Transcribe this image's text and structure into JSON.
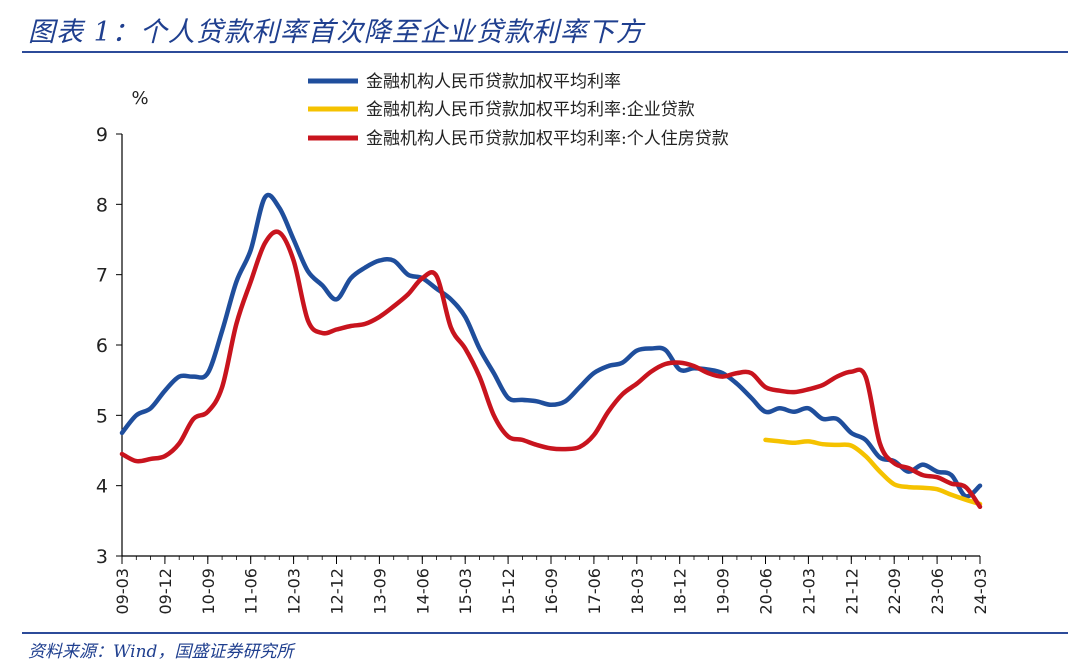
{
  "header": {
    "title": "图表 1：个人贷款利率首次降至企业贷款利率下方"
  },
  "footer": {
    "source": "资料来源：Wind，国盛证券研究所"
  },
  "colors": {
    "series1": "#1f4e9c",
    "series2": "#f5c200",
    "series3": "#c8141e",
    "rule": "#2c4b99",
    "title": "#1f3f8f"
  },
  "chart_data": {
    "type": "line",
    "title": "",
    "ylabel": "%",
    "xlabel": "",
    "ylim": [
      3,
      9
    ],
    "yticks": [
      "3",
      "4",
      "5",
      "6",
      "7",
      "8",
      "9"
    ],
    "xticks": [
      "09-03",
      "09-12",
      "10-09",
      "11-06",
      "12-03",
      "12-12",
      "13-09",
      "14-06",
      "15-03",
      "15-12",
      "16-09",
      "17-06",
      "18-03",
      "18-12",
      "19-09",
      "20-06",
      "21-03",
      "21-12",
      "22-09",
      "23-06",
      "24-03"
    ],
    "legend_position": "top",
    "grid": false,
    "series": [
      {
        "name": "金融机构人民币贷款加权平均利率",
        "x": [
          "09-03",
          "09-06",
          "09-09",
          "09-12",
          "10-03",
          "10-06",
          "10-09",
          "10-12",
          "11-03",
          "11-06",
          "11-09",
          "11-12",
          "12-03",
          "12-06",
          "12-09",
          "12-12",
          "13-03",
          "13-06",
          "13-09",
          "13-12",
          "14-03",
          "14-06",
          "14-09",
          "14-12",
          "15-03",
          "15-06",
          "15-09",
          "15-12",
          "16-03",
          "16-06",
          "16-09",
          "16-12",
          "17-03",
          "17-06",
          "17-09",
          "17-12",
          "18-03",
          "18-06",
          "18-09",
          "18-12",
          "19-03",
          "19-06",
          "19-09",
          "19-12",
          "20-03",
          "20-06",
          "20-09",
          "20-12",
          "21-03",
          "21-06",
          "21-09",
          "21-12",
          "22-03",
          "22-06",
          "22-09",
          "22-12",
          "23-03",
          "23-06",
          "23-09",
          "23-12",
          "24-03"
        ],
        "y": [
          4.75,
          5.0,
          5.1,
          5.35,
          5.55,
          5.55,
          5.6,
          6.2,
          6.9,
          7.35,
          8.1,
          7.95,
          7.5,
          7.05,
          6.85,
          6.65,
          6.95,
          7.1,
          7.2,
          7.2,
          7.0,
          6.95,
          6.8,
          6.65,
          6.4,
          5.95,
          5.6,
          5.25,
          5.22,
          5.2,
          5.15,
          5.2,
          5.4,
          5.6,
          5.7,
          5.75,
          5.92,
          5.95,
          5.93,
          5.65,
          5.67,
          5.65,
          5.6,
          5.45,
          5.25,
          5.05,
          5.1,
          5.05,
          5.1,
          4.95,
          4.95,
          4.75,
          4.65,
          4.4,
          4.35,
          4.2,
          4.3,
          4.2,
          4.15,
          3.85,
          4.0
        ]
      },
      {
        "name": "金融机构人民币贷款加权平均利率:企业贷款",
        "x": [
          "20-06",
          "20-09",
          "20-12",
          "21-03",
          "21-06",
          "21-09",
          "21-12",
          "22-03",
          "22-06",
          "22-09",
          "22-12",
          "23-03",
          "23-06",
          "23-09",
          "23-12",
          "24-03"
        ],
        "y": [
          4.65,
          4.63,
          4.61,
          4.63,
          4.59,
          4.58,
          4.57,
          4.42,
          4.2,
          4.02,
          3.98,
          3.97,
          3.95,
          3.87,
          3.8,
          3.74
        ]
      },
      {
        "name": "金融机构人民币贷款加权平均利率:个人住房贷款",
        "x": [
          "09-03",
          "09-06",
          "09-09",
          "09-12",
          "10-03",
          "10-06",
          "10-09",
          "10-12",
          "11-03",
          "11-06",
          "11-09",
          "11-12",
          "12-03",
          "12-06",
          "12-09",
          "12-12",
          "13-03",
          "13-06",
          "13-09",
          "13-12",
          "14-03",
          "14-06",
          "14-09",
          "14-12",
          "15-03",
          "15-06",
          "15-09",
          "15-12",
          "16-03",
          "16-06",
          "16-09",
          "16-12",
          "17-03",
          "17-06",
          "17-09",
          "17-12",
          "18-03",
          "18-06",
          "18-09",
          "18-12",
          "19-03",
          "19-06",
          "19-09",
          "19-12",
          "20-03",
          "20-06",
          "20-09",
          "20-12",
          "21-03",
          "21-06",
          "21-09",
          "21-12",
          "22-03",
          "22-06",
          "22-09",
          "22-12",
          "23-03",
          "23-06",
          "23-09",
          "23-12",
          "24-03"
        ],
        "y": [
          4.45,
          4.35,
          4.38,
          4.42,
          4.6,
          4.95,
          5.05,
          5.4,
          6.3,
          6.9,
          7.45,
          7.6,
          7.2,
          6.35,
          6.17,
          6.22,
          6.27,
          6.3,
          6.4,
          6.55,
          6.72,
          6.95,
          6.98,
          6.25,
          5.95,
          5.55,
          5.0,
          4.7,
          4.65,
          4.58,
          4.53,
          4.52,
          4.55,
          4.72,
          5.05,
          5.3,
          5.45,
          5.62,
          5.73,
          5.75,
          5.7,
          5.6,
          5.55,
          5.6,
          5.6,
          5.4,
          5.35,
          5.33,
          5.37,
          5.43,
          5.55,
          5.62,
          5.55,
          4.6,
          4.32,
          4.25,
          4.15,
          4.12,
          4.03,
          3.98,
          3.7
        ]
      }
    ]
  }
}
